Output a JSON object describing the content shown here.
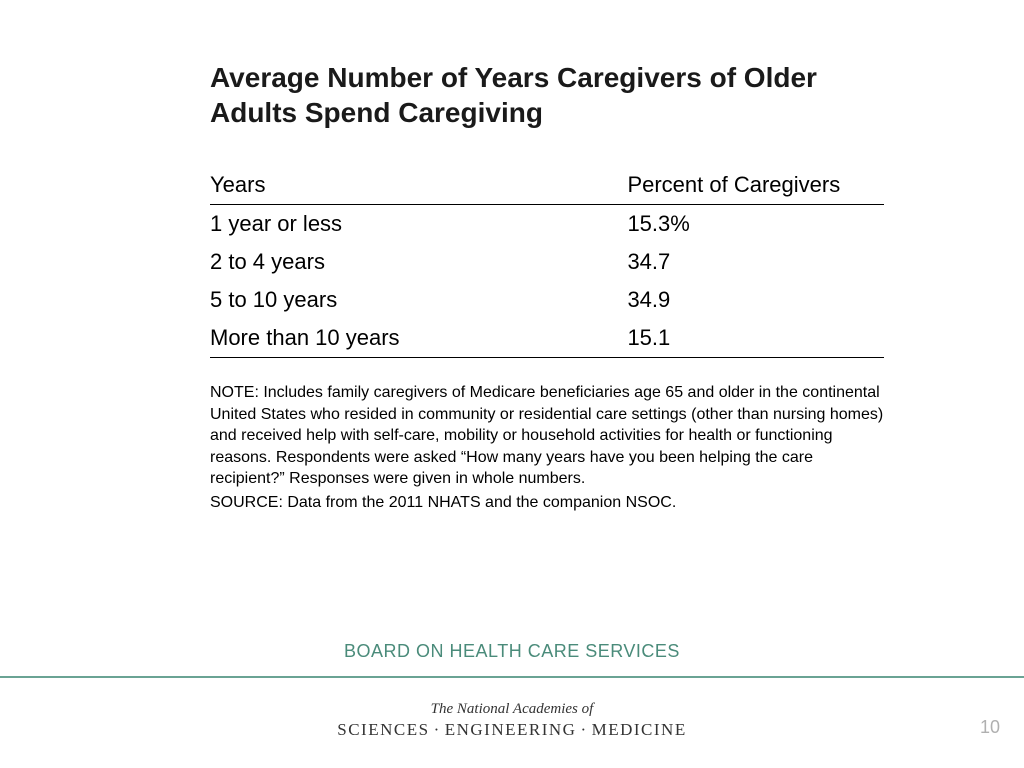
{
  "title": "Average Number of Years Caregivers of Older Adults Spend Caregiving",
  "table": {
    "type": "table",
    "columns": [
      "Years",
      "Percent of Caregivers"
    ],
    "rows": [
      [
        "1 year or less",
        "15.3%"
      ],
      [
        "2 to 4 years",
        "34.7"
      ],
      [
        "5 to 10 years",
        "34.9"
      ],
      [
        "More than 10 years",
        "15.1"
      ]
    ],
    "header_fontsize": 22,
    "body_fontsize": 22,
    "border_color": "#000000",
    "col_widths_pct": [
      56,
      44
    ]
  },
  "note": "NOTE: Includes family caregivers of Medicare beneficiaries age 65 and older in the continental United States who resided in community or residential care settings (other than nursing homes) and received help with self-care, mobility or household activities for health or functioning reasons. Respondents were asked “How many years have you been helping the care recipient?” Responses were given in whole numbers.",
  "source": "SOURCE: Data from the 2011 NHATS and the companion NSOC.",
  "board_line": "BOARD ON HEALTH CARE SERVICES",
  "footer": {
    "line1": "The National Academies of",
    "words": [
      "SCIENCES",
      "ENGINEERING",
      "MEDICINE"
    ],
    "separator": "·"
  },
  "page_number": "10",
  "colors": {
    "text": "#000000",
    "accent": "#4a8b7a",
    "divider": "#6aa394",
    "page_num": "#b0b0b0",
    "background": "#ffffff"
  },
  "typography": {
    "title_fontsize": 28,
    "title_weight": "bold",
    "body_font": "Trebuchet MS",
    "footer_font": "Georgia"
  }
}
